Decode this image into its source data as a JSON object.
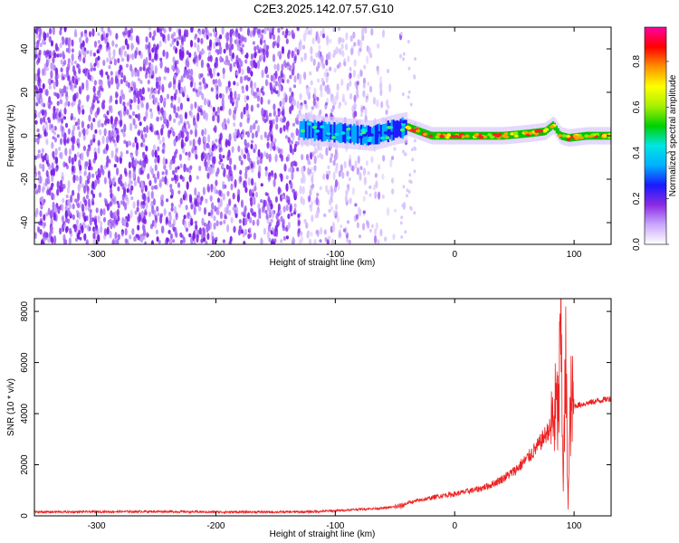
{
  "title": "C2E3.2025.142.07.57.G10",
  "chart_data": [
    {
      "type": "heatmap",
      "xlabel": "Height of straight line (km)",
      "ylabel": "Frequency (Hz)",
      "xlim": [
        -352,
        131
      ],
      "ylim": [
        -50,
        50
      ],
      "xticks": [
        -300,
        -200,
        -100,
        0,
        100
      ],
      "yticks": [
        -40,
        -20,
        0,
        20,
        40
      ],
      "colorbar": {
        "label": "Normalized spectral amplitude",
        "range": [
          0.0,
          0.95
        ],
        "ticks": [
          0.0,
          0.2,
          0.4,
          0.6,
          0.8
        ],
        "colors": [
          "#ffffff",
          "#c9a8ff",
          "#8a2be2",
          "#1a1aff",
          "#00b0ff",
          "#00e5e5",
          "#00d000",
          "#a8f000",
          "#ffff00",
          "#ff9000",
          "#ff0000",
          "#ff00a0"
        ]
      },
      "signal_track": {
        "x": [
          -130,
          -110,
          -90,
          -70,
          -50,
          -40,
          -30,
          -20,
          0,
          20,
          40,
          60,
          75,
          82,
          88,
          95,
          110,
          131
        ],
        "frequency": [
          3,
          2,
          1,
          0,
          3,
          4,
          2,
          0,
          0,
          0,
          0,
          1,
          2,
          5,
          0,
          -1,
          0,
          0
        ]
      }
    },
    {
      "type": "line",
      "xlabel": "Height of straight line (km)",
      "ylabel": "SNR (10 * v/v)",
      "xlim": [
        -352,
        131
      ],
      "ylim": [
        0,
        8500
      ],
      "xticks": [
        -300,
        -200,
        -100,
        0,
        100
      ],
      "yticks": [
        0,
        2000,
        4000,
        6000,
        8000
      ],
      "series": [
        {
          "color": "#ee2222",
          "x": [
            -352,
            -300,
            -250,
            -200,
            -150,
            -120,
            -100,
            -80,
            -60,
            -45,
            -40,
            -30,
            -20,
            -10,
            0,
            10,
            20,
            30,
            40,
            50,
            60,
            70,
            75,
            80,
            83,
            85,
            87,
            89,
            91,
            93,
            95,
            97,
            100,
            110,
            120,
            131
          ],
          "y": [
            150,
            160,
            170,
            150,
            150,
            160,
            200,
            260,
            300,
            380,
            500,
            600,
            700,
            800,
            850,
            950,
            1050,
            1200,
            1450,
            1750,
            2200,
            2750,
            3100,
            3450,
            3800,
            4200,
            4000,
            7600,
            1400,
            5900,
            500,
            4300,
            4300,
            4400,
            4500,
            4600
          ]
        }
      ]
    }
  ]
}
